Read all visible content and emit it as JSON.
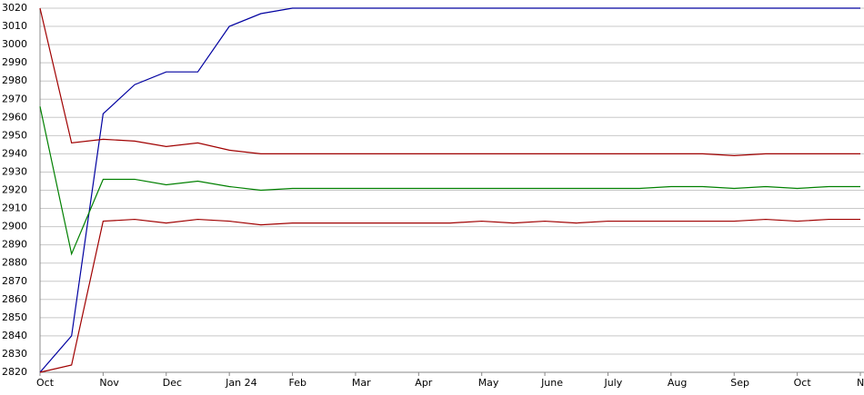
{
  "chart_data": {
    "type": "line",
    "categories": [
      "Oct",
      null,
      "Nov",
      null,
      "Dec",
      null,
      "Jan 24",
      null,
      "Feb",
      null,
      "Mar",
      null,
      "Apr",
      null,
      "May",
      null,
      "June",
      null,
      "July",
      null,
      "Aug",
      null,
      "Sep",
      null,
      "Oct",
      null,
      "No"
    ],
    "series": [
      {
        "color": "#0000a0",
        "values": [
          2820,
          2840,
          2962,
          2978,
          2985,
          2985,
          3010,
          3017,
          3020,
          3020,
          3020,
          3020,
          3020,
          3020,
          3020,
          3020,
          3020,
          3020,
          3020,
          3020,
          3020,
          3020,
          3020,
          3020,
          3020,
          3020,
          3020
        ]
      },
      {
        "color": "#a00000",
        "values": [
          3020,
          2946,
          2948,
          2947,
          2944,
          2946,
          2942,
          2940,
          2940,
          2940,
          2940,
          2940,
          2940,
          2940,
          2940,
          2940,
          2940,
          2940,
          2940,
          2940,
          2940,
          2940,
          2939,
          2940,
          2940,
          2940,
          2940
        ]
      },
      {
        "color": "#008000",
        "values": [
          2966,
          2885,
          2926,
          2926,
          2923,
          2925,
          2922,
          2920,
          2921,
          2921,
          2921,
          2921,
          2921,
          2921,
          2921,
          2921,
          2921,
          2921,
          2921,
          2921,
          2922,
          2922,
          2921,
          2922,
          2921,
          2922,
          2922
        ]
      },
      {
        "color": "#a00000",
        "values": [
          2820,
          2824,
          2903,
          2904,
          2902,
          2904,
          2903,
          2901,
          2902,
          2902,
          2902,
          2902,
          2902,
          2902,
          2903,
          2902,
          2903,
          2902,
          2903,
          2903,
          2903,
          2903,
          2903,
          2904,
          2903,
          2904,
          2904
        ]
      }
    ],
    "ylim": [
      2820,
      3020
    ],
    "yticks": [
      2820,
      2830,
      2840,
      2850,
      2860,
      2870,
      2880,
      2890,
      2900,
      2910,
      2920,
      2930,
      2940,
      2950,
      2960,
      2970,
      2980,
      2990,
      3000,
      3010,
      3020
    ],
    "grid": true
  }
}
